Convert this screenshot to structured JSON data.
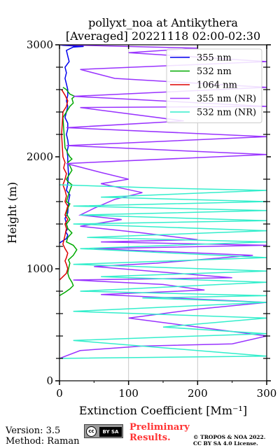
{
  "chart_data": {
    "type": "line",
    "title_line1": "pollyxt_noa at Antikythera",
    "title_line2": "[Averaged] 20221118 02:00-02:30",
    "xlabel": "Extinction Coefficient",
    "xlabel_unit": "[Mm⁻¹]",
    "ylabel": "Height (m)",
    "xlim": [
      0,
      300
    ],
    "ylim": [
      0,
      3000
    ],
    "x_ticks": [
      0,
      100,
      200,
      300
    ],
    "y_ticks": [
      0,
      1000,
      2000,
      3000
    ],
    "grid": true,
    "legend_position": "top-right",
    "series": [
      {
        "name": "355 nm",
        "color": "#0000ee",
        "points": [
          [
            0,
            1230
          ],
          [
            5,
            1250
          ],
          [
            10,
            1270
          ],
          [
            12,
            1300
          ],
          [
            9,
            1330
          ],
          [
            12,
            1360
          ],
          [
            10,
            1400
          ],
          [
            8,
            1450
          ],
          [
            12,
            1500
          ],
          [
            13,
            1600
          ],
          [
            15,
            1660
          ],
          [
            10,
            1700
          ],
          [
            12,
            1760
          ],
          [
            13,
            1850
          ],
          [
            12,
            1950
          ],
          [
            12,
            2000
          ],
          [
            11,
            2050
          ],
          [
            13,
            2100
          ],
          [
            12,
            2150
          ],
          [
            10,
            2200
          ],
          [
            12,
            2250
          ],
          [
            12,
            2300
          ],
          [
            8,
            2350
          ],
          [
            10,
            2400
          ],
          [
            12,
            2450
          ],
          [
            10,
            2500
          ],
          [
            12,
            2550
          ],
          [
            12,
            2600
          ],
          [
            10,
            2650
          ],
          [
            8,
            2700
          ],
          [
            10,
            2750
          ],
          [
            8,
            2800
          ],
          [
            14,
            2850
          ],
          [
            12,
            2900
          ],
          [
            10,
            2950
          ],
          [
            20,
            2980
          ],
          [
            35,
            2985
          ],
          [
            20,
            2990
          ],
          [
            5,
            2995
          ],
          [
            0,
            3000
          ]
        ]
      },
      {
        "name": "532 nm",
        "color": "#00aa00",
        "points": [
          [
            0,
            760
          ],
          [
            8,
            790
          ],
          [
            15,
            820
          ],
          [
            20,
            850
          ],
          [
            18,
            880
          ],
          [
            14,
            920
          ],
          [
            12,
            960
          ],
          [
            13,
            1000
          ],
          [
            15,
            1050
          ],
          [
            13,
            1080
          ],
          [
            20,
            1120
          ],
          [
            25,
            1170
          ],
          [
            20,
            1210
          ],
          [
            10,
            1240
          ],
          [
            12,
            1280
          ],
          [
            18,
            1320
          ],
          [
            12,
            1360
          ],
          [
            10,
            1400
          ],
          [
            15,
            1440
          ],
          [
            12,
            1470
          ],
          [
            10,
            1500
          ],
          [
            12,
            1540
          ],
          [
            15,
            1580
          ],
          [
            10,
            1600
          ],
          [
            12,
            1640
          ],
          [
            15,
            1700
          ],
          [
            18,
            1750
          ],
          [
            12,
            1780
          ],
          [
            10,
            1800
          ],
          [
            15,
            1850
          ],
          [
            18,
            1880
          ],
          [
            15,
            1920
          ],
          [
            12,
            1950
          ],
          [
            18,
            1980
          ],
          [
            15,
            2000
          ],
          [
            12,
            2030
          ],
          [
            10,
            2060
          ],
          [
            8,
            2080
          ],
          [
            5,
            2350
          ],
          [
            10,
            2400
          ],
          [
            15,
            2450
          ],
          [
            20,
            2480
          ],
          [
            18,
            2520
          ],
          [
            22,
            2540
          ],
          [
            15,
            2560
          ],
          [
            10,
            2600
          ],
          [
            5,
            2620
          ]
        ]
      },
      {
        "name": "1064 nm",
        "color": "#dd0000",
        "points": [
          [
            0,
            900
          ],
          [
            5,
            930
          ],
          [
            10,
            960
          ],
          [
            12,
            1000
          ],
          [
            10,
            1040
          ],
          [
            8,
            1070
          ],
          [
            10,
            1100
          ],
          [
            12,
            1140
          ],
          [
            8,
            1180
          ],
          [
            5,
            1220
          ],
          [
            8,
            1300
          ],
          [
            10,
            1360
          ],
          [
            8,
            1400
          ],
          [
            12,
            1440
          ],
          [
            8,
            1480
          ],
          [
            10,
            1520
          ],
          [
            12,
            1560
          ],
          [
            8,
            1600
          ],
          [
            10,
            1650
          ],
          [
            8,
            1700
          ],
          [
            5,
            1750
          ],
          [
            8,
            1800
          ],
          [
            10,
            1850
          ],
          [
            6,
            1900
          ],
          [
            8,
            1950
          ],
          [
            5,
            2000
          ],
          [
            3,
            2200
          ],
          [
            5,
            2400
          ],
          [
            10,
            2450
          ],
          [
            12,
            2500
          ],
          [
            8,
            2550
          ],
          [
            3,
            2600
          ]
        ]
      },
      {
        "name": "355 nm (NR)",
        "color": "#9933ff",
        "points": [
          [
            0,
            200
          ],
          [
            30,
            270
          ],
          [
            120,
            310
          ],
          [
            250,
            330
          ],
          [
            300,
            400
          ],
          [
            100,
            560
          ],
          [
            200,
            640
          ],
          [
            300,
            700
          ],
          [
            60,
            770
          ],
          [
            210,
            810
          ],
          [
            150,
            860
          ],
          [
            20,
            900
          ],
          [
            250,
            920
          ],
          [
            50,
            1020
          ],
          [
            140,
            1050
          ],
          [
            280,
            1120
          ],
          [
            50,
            1180
          ],
          [
            300,
            1210
          ],
          [
            60,
            1240
          ],
          [
            200,
            1260
          ],
          [
            120,
            1320
          ],
          [
            30,
            1380
          ],
          [
            90,
            1440
          ],
          [
            30,
            1480
          ],
          [
            50,
            1540
          ],
          [
            80,
            1620
          ],
          [
            120,
            1680
          ],
          [
            90,
            1720
          ],
          [
            60,
            1760
          ],
          [
            100,
            1800
          ],
          [
            60,
            1860
          ],
          [
            10,
            1940
          ],
          [
            300,
            2020
          ],
          [
            10,
            2100
          ],
          [
            300,
            2180
          ],
          [
            10,
            2260
          ],
          [
            180,
            2320
          ],
          [
            30,
            2440
          ],
          [
            300,
            2450
          ],
          [
            20,
            2540
          ],
          [
            300,
            2620
          ],
          [
            80,
            2700
          ],
          [
            30,
            2780
          ],
          [
            300,
            2850
          ],
          [
            100,
            2930
          ],
          [
            200,
            2970
          ],
          [
            0,
            3000
          ]
        ]
      },
      {
        "name": "532 nm (NR)",
        "color": "#33eecc",
        "points": [
          [
            0,
            200
          ],
          [
            300,
            220
          ],
          [
            20,
            360
          ],
          [
            200,
            400
          ],
          [
            300,
            420
          ],
          [
            150,
            480
          ],
          [
            300,
            560
          ],
          [
            20,
            620
          ],
          [
            300,
            700
          ],
          [
            120,
            740
          ],
          [
            300,
            760
          ],
          [
            30,
            800
          ],
          [
            300,
            880
          ],
          [
            60,
            930
          ],
          [
            300,
            980
          ],
          [
            20,
            1040
          ],
          [
            300,
            1100
          ],
          [
            30,
            1180
          ],
          [
            300,
            1240
          ],
          [
            40,
            1280
          ],
          [
            300,
            1340
          ],
          [
            20,
            1400
          ],
          [
            300,
            1430
          ],
          [
            30,
            1480
          ],
          [
            300,
            1520
          ],
          [
            20,
            1560
          ],
          [
            300,
            1600
          ],
          [
            60,
            1640
          ],
          [
            300,
            1700
          ],
          [
            150,
            1720
          ],
          [
            0,
            1750
          ]
        ]
      }
    ]
  },
  "footer": {
    "version": "Version: 3.5",
    "method": "Method: Raman",
    "license_badge": "cc-by-sa-icon",
    "preliminary_line1": "Preliminary",
    "preliminary_line2": "Results.",
    "copyright_line1": "© TROPOS & NOA 2022.",
    "copyright_line2": "CC BY SA 4.0 License."
  }
}
